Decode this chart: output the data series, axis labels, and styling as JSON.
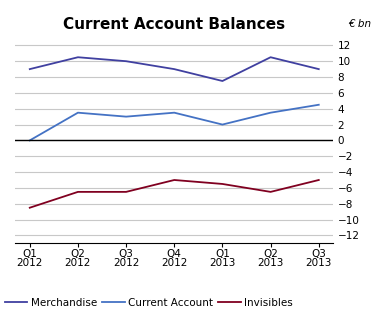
{
  "title": "Current Account Balances",
  "ylabel": "€ bn",
  "categories": [
    "Q1 2012",
    "Q2 2012",
    "Q3 2012",
    "Q4 2012",
    "Q1 2013",
    "Q2 2013",
    "Q3 2013"
  ],
  "merchandise": [
    9.0,
    10.5,
    10.0,
    9.0,
    7.5,
    10.5,
    9.0
  ],
  "current_account": [
    0.0,
    3.5,
    3.0,
    3.5,
    2.0,
    3.5,
    4.5
  ],
  "invisibles": [
    -8.5,
    -6.5,
    -6.5,
    -5.0,
    -5.5,
    -6.5,
    -5.0
  ],
  "merchandise_color": "#4040A0",
  "current_account_color": "#4472C4",
  "invisibles_color": "#800020",
  "ylim": [
    -13,
    13
  ],
  "yticks": [
    -12,
    -10,
    -8,
    -6,
    -4,
    -2,
    0,
    2,
    4,
    6,
    8,
    10,
    12
  ],
  "legend_labels": [
    "Merchandise",
    "Current Account",
    "Invisibles"
  ],
  "bg_color": "#FFFFFF",
  "grid_color": "#C8C8C8",
  "title_fontsize": 11,
  "tick_fontsize": 7.5,
  "legend_fontsize": 7.5
}
